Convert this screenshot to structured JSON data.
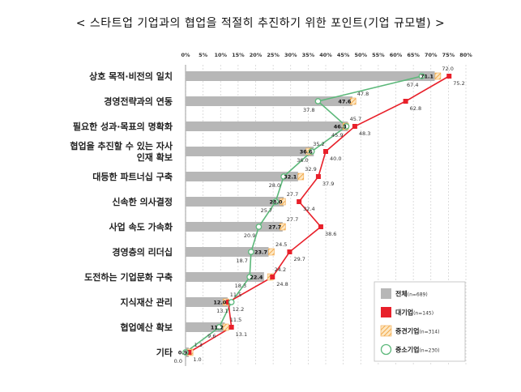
{
  "title": "< 스타트업 기업과의 협업을 적절히 추진하기 위한 포인트(기업 규모별) >",
  "chart_data": {
    "type": "bar",
    "orientation": "horizontal",
    "title": "< 스타트업 기업과의 협업을 적절히 추진하기 위한 포인트(기업 규모별) >",
    "xlim": [
      0,
      80
    ],
    "x_ticks": [
      "0%",
      "5%",
      "10%",
      "15%",
      "20%",
      "25%",
      "30%",
      "35%",
      "40%",
      "45%",
      "50%",
      "55%",
      "60%",
      "65%",
      "70%",
      "75%",
      "80%"
    ],
    "grid": true,
    "legend_position": "bottom-right",
    "categories": [
      [
        "상호 목적·비전의 일치"
      ],
      [
        "경영전략과의 연동"
      ],
      [
        "필요한 성과·목표의 명확화"
      ],
      [
        "협업을 추진할 수 있는 자사",
        "인재 확보"
      ],
      [
        "대등한 파트너십 구축"
      ],
      [
        "신속한 의사결정"
      ],
      [
        "사업 속도 가속화"
      ],
      [
        "경영층의 리더십"
      ],
      [
        "도전하는 기업문화 구축"
      ],
      [
        "지식재산 관리"
      ],
      [
        "협업예산 확보"
      ],
      [
        "기타"
      ]
    ],
    "series": [
      {
        "name": "전체",
        "n": "(n=689)",
        "mark": "bar",
        "color": "#b7b7b7",
        "values": [
          71.1,
          47.6,
          46.3,
          36.6,
          32.1,
          28.0,
          27.7,
          23.7,
          22.4,
          12.0,
          11.2,
          0.9
        ]
      },
      {
        "name": "대기업",
        "n": "(n=145)",
        "mark": "line-square",
        "color": "#e8202a",
        "values": [
          75.2,
          62.8,
          48.3,
          40.0,
          37.9,
          32.4,
          38.6,
          29.7,
          24.8,
          12.2,
          13.1,
          1.0
        ]
      },
      {
        "name": "중견기업",
        "n": "(n=314)",
        "mark": "line-triangle",
        "color": "#f4b458",
        "values": [
          72.0,
          47.8,
          45.7,
          35.2,
          32.9,
          27.7,
          27.7,
          24.5,
          24.2,
          11.5,
          11.5,
          1.3
        ]
      },
      {
        "name": "중소기업",
        "n": "(n=230)",
        "mark": "line-circle",
        "color": "#5cb87a",
        "values": [
          67.4,
          37.8,
          45.9,
          36.0,
          28.0,
          25.7,
          20.9,
          18.7,
          18.3,
          13.1,
          9.6,
          0.0
        ]
      }
    ]
  }
}
